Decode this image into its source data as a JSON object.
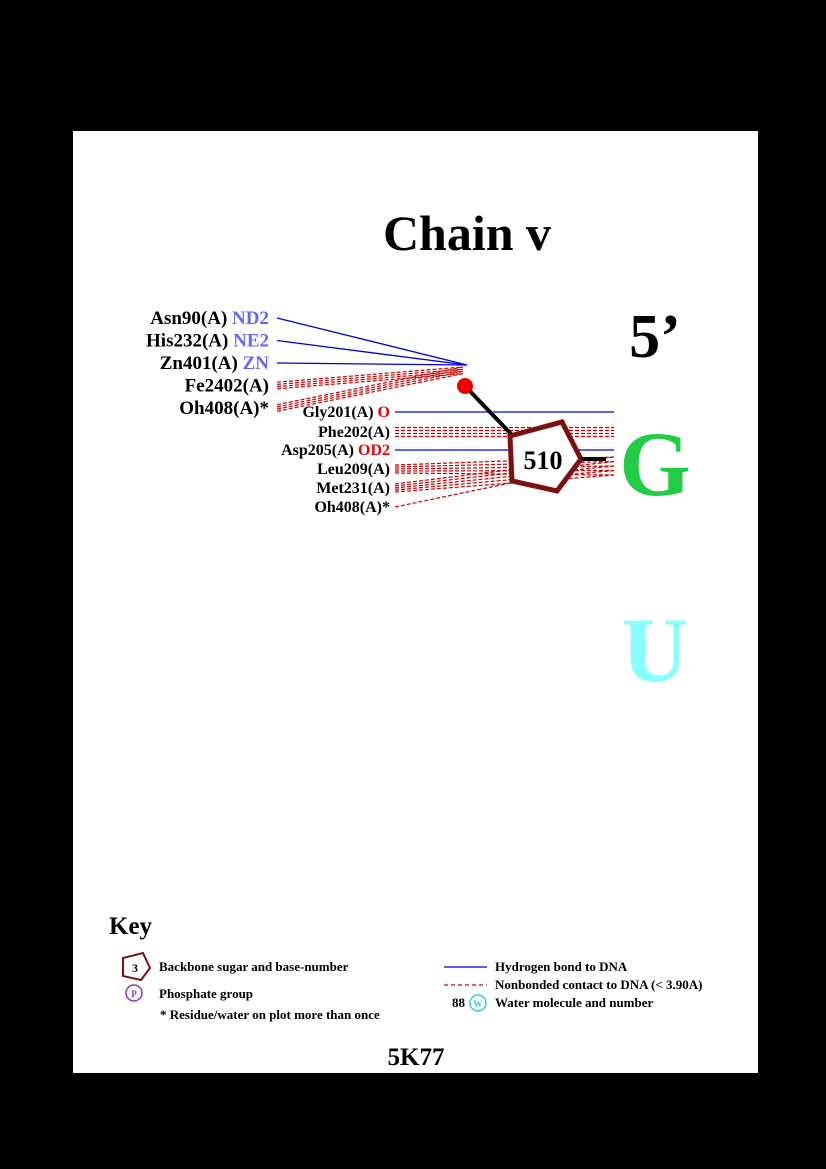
{
  "title": "Chain v",
  "strand_end": "5’",
  "bases": [
    {
      "letter": "G",
      "color": "#22cc44"
    },
    {
      "letter": "U",
      "color": "#88ffff"
    }
  ],
  "nucleotide": {
    "number": "510",
    "sugar_color": "#7a1010",
    "phosphate_color": "#ee0000"
  },
  "phosphate_residues": [
    {
      "name": "Asn90(A)",
      "atom": "ND2",
      "atom_color": "#6666ff",
      "contact": "hbond"
    },
    {
      "name": "His232(A)",
      "atom": "NE2",
      "atom_color": "#6666ff",
      "contact": "hbond"
    },
    {
      "name": "Zn401(A)",
      "atom": "ZN",
      "atom_color": "#6666ff",
      "contact": "hbond"
    },
    {
      "name": "Fe2402(A)",
      "atom": "",
      "atom_color": "#000000",
      "contact": "nonbonded"
    },
    {
      "name": "Oh408(A)*",
      "atom": "",
      "atom_color": "#000000",
      "contact": "nonbonded"
    }
  ],
  "sugar_residues": [
    {
      "name": "Gly201(A)",
      "atom": "O",
      "atom_color": "#ee0000",
      "contact": "hbond"
    },
    {
      "name": "Phe202(A)",
      "atom": "",
      "atom_color": "#000000",
      "contact": "nonbonded"
    },
    {
      "name": "Asp205(A)",
      "atom": "OD2",
      "atom_color": "#ee0000",
      "contact": "hbond"
    },
    {
      "name": "Leu209(A)",
      "atom": "",
      "atom_color": "#000000",
      "contact": "nonbonded"
    },
    {
      "name": "Met231(A)",
      "atom": "",
      "atom_color": "#000000",
      "contact": "nonbonded"
    },
    {
      "name": "Oh408(A)*",
      "atom": "",
      "atom_color": "#000000",
      "contact": "nonbonded"
    }
  ],
  "key": {
    "title": "Key",
    "sugar_example_number": "3",
    "sugar_label": "Backbone sugar and base-number",
    "phosphate_symbol": "P",
    "phosphate_label": "Phosphate group",
    "repeat_note": "* Residue/water on plot more than once",
    "hbond_label": "Hydrogen bond to DNA",
    "nonbonded_label": "Nonbonded contact to DNA (< 3.90A)",
    "water_example_number": "88",
    "water_symbol": "W",
    "water_label": "Water molecule and number"
  },
  "pdb_id": "5K77",
  "colors": {
    "hbond": "#0000dd",
    "nonbonded": "#cc0000",
    "water": "#33cccc",
    "phosphate_key": "#8833cc"
  }
}
